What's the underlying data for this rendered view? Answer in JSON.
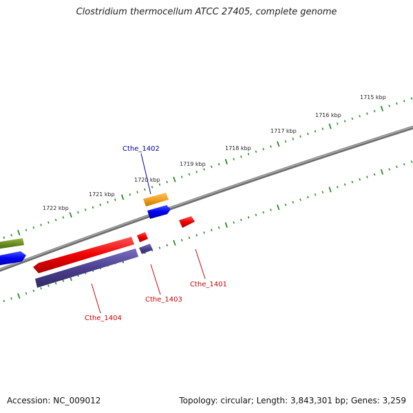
{
  "title": "Clostridium thermocellum ATCC 27405, complete genome",
  "footer": {
    "accession": "Accession: NC_009012",
    "summary": "Topology: circular; Length: 3,843,301 bp; Genes: 3,259"
  },
  "scale": {
    "ticks": [
      {
        "kbp": 1715,
        "label": "1715 kbp"
      },
      {
        "kbp": 1716,
        "label": "1716 kbp"
      },
      {
        "kbp": 1717,
        "label": "1717 kbp"
      },
      {
        "kbp": 1718,
        "label": "1718 kbp"
      },
      {
        "kbp": 1719,
        "label": "1719 kbp"
      },
      {
        "kbp": 1720,
        "label": "1720 kbp"
      },
      {
        "kbp": 1721,
        "label": "1721 kbp"
      },
      {
        "kbp": 1722,
        "label": "1722 kbp"
      }
    ]
  },
  "labels": {
    "cthe_1402": "Cthe_1402",
    "cthe_1401": "Cthe_1401",
    "cthe_1403": "Cthe_1403",
    "cthe_1404": "Cthe_1404"
  },
  "colors": {
    "backbone": "#808080",
    "scale_ticks": "#228B22",
    "red_feature": "#ee0000",
    "blue_feature": "#0000ee",
    "purple_feature": "#4b3f8f",
    "orange_feature": "#f0a020",
    "green_feature": "#6b8e23",
    "blue_label": "#000099",
    "red_label": "#cc0000"
  }
}
